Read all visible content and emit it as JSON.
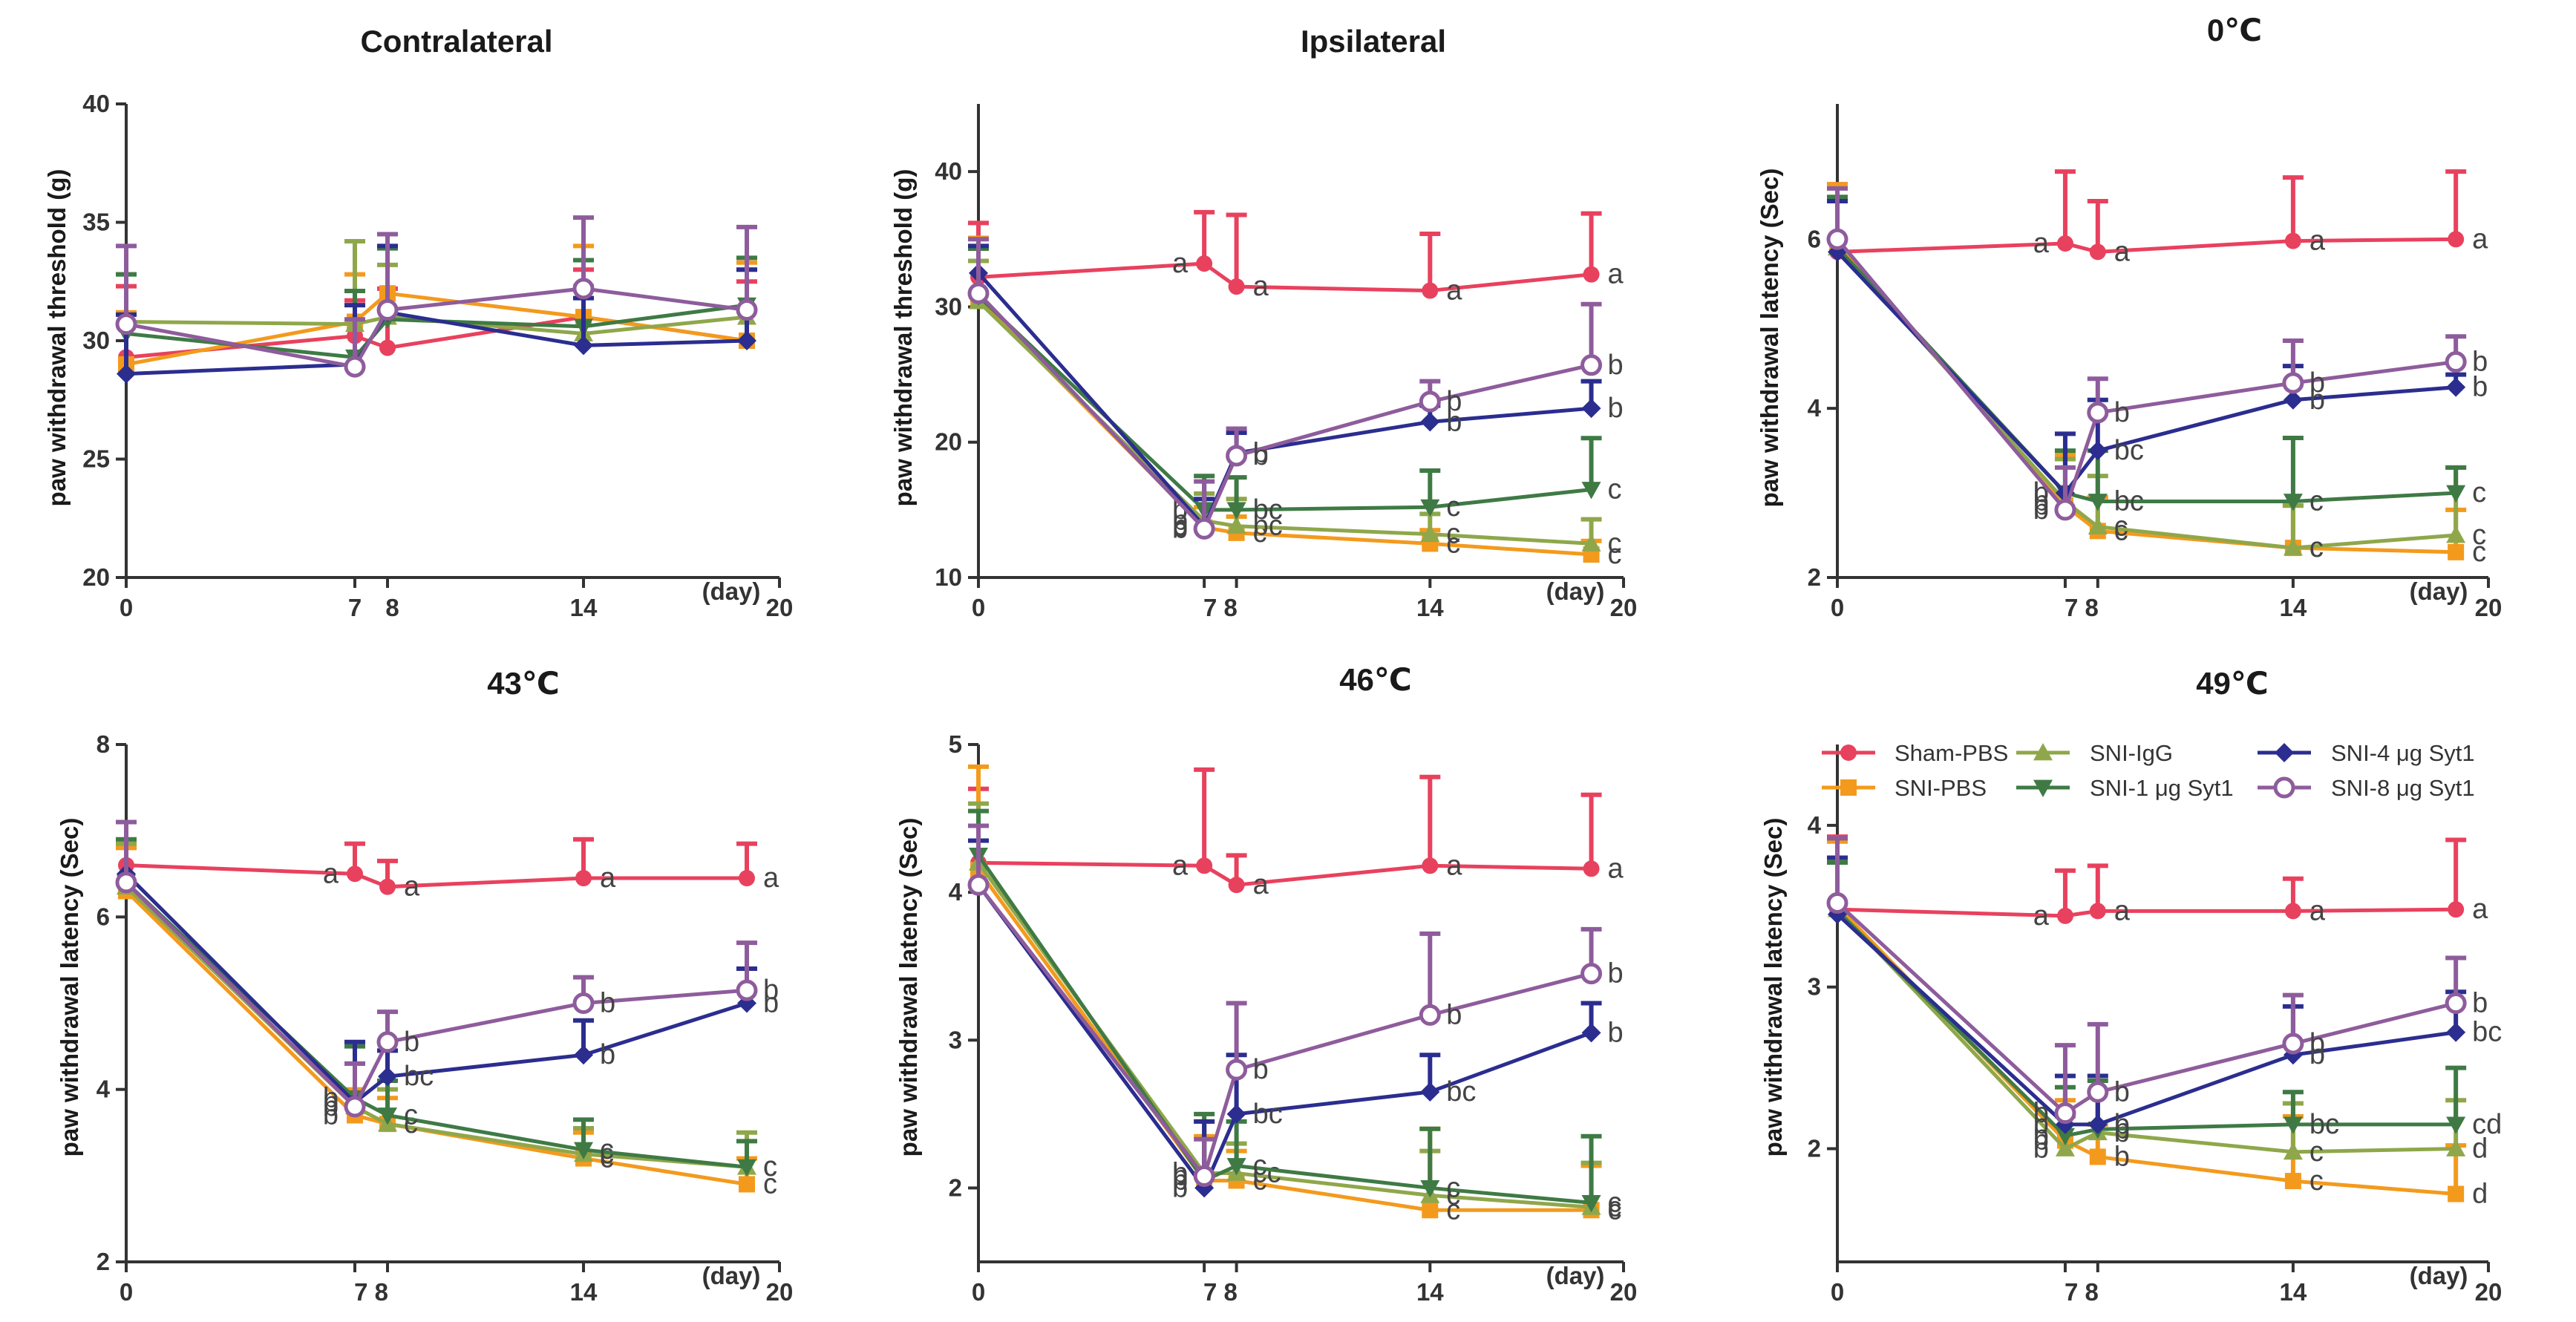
{
  "chart_data": [
    {
      "type": "line",
      "title": "Contralateral",
      "ylabel": "paw withdrawal threshold (g)",
      "xlabel": "(day)",
      "x": [
        0,
        7,
        8,
        14,
        19
      ],
      "ylim": [
        20,
        40
      ],
      "yticks": [
        "20",
        "25",
        "30",
        "35",
        "40"
      ],
      "xticks": [
        "0",
        "7",
        "8",
        "14",
        "20"
      ],
      "series": [
        {
          "name": "Sham-PBS",
          "values": [
            29.3,
            30.2,
            29.7,
            31.0,
            30.0
          ],
          "errors": [
            3.0,
            1.5,
            2.5,
            2.0,
            2.5
          ],
          "letters": []
        },
        {
          "name": "SNI-PBS",
          "values": [
            29.0,
            30.8,
            32.0,
            31.0,
            30.0
          ],
          "errors": [
            2.2,
            2.0,
            2.5,
            3.0,
            3.3
          ],
          "letters": []
        },
        {
          "name": "SNI-IgG",
          "values": [
            30.8,
            30.7,
            31.0,
            30.3,
            31.0
          ],
          "errors": [
            2.0,
            3.5,
            2.2,
            2.0,
            2.0
          ],
          "letters": []
        },
        {
          "name": "SNI-1 μg Syt1",
          "values": [
            30.3,
            29.3,
            30.9,
            30.6,
            31.5
          ],
          "errors": [
            2.5,
            2.8,
            3.0,
            2.8,
            2.0
          ],
          "letters": []
        },
        {
          "name": "SNI-4 μg Syt1",
          "values": [
            28.6,
            29.0,
            31.2,
            29.8,
            30.0
          ],
          "errors": [
            2.5,
            2.5,
            2.8,
            2.0,
            3.0
          ],
          "letters": []
        },
        {
          "name": "SNI-8 μg Syt1",
          "values": [
            30.7,
            28.9,
            31.3,
            32.2,
            31.3
          ],
          "errors": [
            3.3,
            2.0,
            3.2,
            3.0,
            3.5
          ],
          "letters": []
        }
      ]
    },
    {
      "type": "line",
      "title": "Ipsilateral",
      "ylabel": "paw withdrawal threshold (g)",
      "xlabel": "(day)",
      "x": [
        0,
        7,
        8,
        14,
        19
      ],
      "ylim": [
        10,
        45
      ],
      "yticks": [
        "10",
        "20",
        "30",
        "40"
      ],
      "xticks": [
        "0",
        "7 8",
        "14",
        "20"
      ],
      "series": [
        {
          "name": "Sham-PBS",
          "values": [
            32.2,
            33.2,
            31.5,
            31.2,
            32.4
          ],
          "errors": [
            4.0,
            3.8,
            5.3,
            4.2,
            4.5
          ],
          "letters": [
            "",
            "a",
            "a",
            "a",
            "a"
          ]
        },
        {
          "name": "SNI-PBS",
          "values": [
            30.6,
            13.7,
            13.3,
            12.5,
            11.7
          ],
          "errors": [
            4.5,
            1.5,
            1.2,
            1.0,
            1.0
          ],
          "letters": [
            "",
            "b",
            "c",
            "c",
            "c"
          ]
        },
        {
          "name": "SNI-IgG",
          "values": [
            30.4,
            14.2,
            13.8,
            13.2,
            12.5
          ],
          "errors": [
            3.0,
            2.0,
            2.0,
            1.5,
            1.8
          ],
          "letters": [
            "",
            "b",
            "bc",
            "c",
            "c"
          ]
        },
        {
          "name": "SNI-1 μg Syt1",
          "values": [
            30.8,
            15.0,
            15.0,
            15.2,
            16.5
          ],
          "errors": [
            3.5,
            2.5,
            2.4,
            2.7,
            3.8
          ],
          "letters": [
            "",
            "b",
            "bc",
            "c",
            "c"
          ]
        },
        {
          "name": "SNI-4 μg Syt1",
          "values": [
            32.5,
            13.8,
            19.2,
            21.5,
            22.5
          ],
          "errors": [
            2.0,
            2.0,
            1.5,
            1.2,
            2.0
          ],
          "letters": [
            "",
            "b",
            "b",
            "b",
            "b"
          ]
        },
        {
          "name": "SNI-8 μg Syt1",
          "values": [
            31.0,
            13.6,
            19.0,
            23.0,
            25.7
          ],
          "errors": [
            4.0,
            3.5,
            2.0,
            1.5,
            4.5
          ],
          "letters": [
            "",
            "b",
            "b",
            "b",
            "b"
          ]
        }
      ]
    },
    {
      "type": "line",
      "title": "0℃",
      "ylabel": "paw withdrawal latency (Sec)",
      "xlabel": "(day)",
      "x": [
        0,
        7,
        8,
        14,
        19
      ],
      "ylim": [
        2,
        7.6
      ],
      "yticks": [
        "2",
        "4",
        "6"
      ],
      "xticks": [
        "0",
        "7 8",
        "14",
        "20"
      ],
      "series": [
        {
          "name": "Sham-PBS",
          "values": [
            5.85,
            5.95,
            5.85,
            5.98,
            6.0
          ],
          "errors": [
            0.8,
            0.85,
            0.6,
            0.75,
            0.8
          ],
          "letters": [
            "",
            "a",
            "a",
            "a",
            "a"
          ]
        },
        {
          "name": "SNI-PBS",
          "values": [
            5.95,
            2.85,
            2.55,
            2.35,
            2.3
          ],
          "errors": [
            0.7,
            0.6,
            0.4,
            0.5,
            0.5
          ],
          "letters": [
            "",
            "b",
            "c",
            "c",
            "c"
          ]
        },
        {
          "name": "SNI-IgG",
          "values": [
            5.9,
            2.9,
            2.6,
            2.35,
            2.5
          ],
          "errors": [
            0.6,
            0.5,
            0.6,
            0.5,
            0.8
          ],
          "letters": [
            "",
            "b",
            "c",
            "c",
            "c"
          ]
        },
        {
          "name": "SNI-1 μg Syt1",
          "values": [
            5.9,
            3.0,
            2.9,
            2.9,
            3.0
          ],
          "errors": [
            0.6,
            0.5,
            0.6,
            0.75,
            0.3
          ],
          "letters": [
            "",
            "b",
            "bc",
            "c",
            "c"
          ]
        },
        {
          "name": "SNI-4 μg Syt1",
          "values": [
            5.85,
            3.0,
            3.5,
            4.1,
            4.25
          ],
          "errors": [
            0.6,
            0.7,
            0.6,
            0.4,
            0.15
          ],
          "letters": [
            "",
            "b",
            "bc",
            "b",
            "b"
          ]
        },
        {
          "name": "SNI-8 μg Syt1",
          "values": [
            6.0,
            2.8,
            3.95,
            4.3,
            4.55
          ],
          "errors": [
            0.6,
            0.5,
            0.4,
            0.5,
            0.3
          ],
          "letters": [
            "",
            "b",
            "b",
            "b",
            "b"
          ]
        }
      ]
    },
    {
      "type": "line",
      "title": "43℃",
      "ylabel": "paw withdrawal latency (Sec)",
      "xlabel": "(day)",
      "x": [
        0,
        7,
        8,
        14,
        19
      ],
      "ylim": [
        2,
        8
      ],
      "yticks": [
        "2",
        "4",
        "6",
        "8"
      ],
      "xticks": [
        "0",
        "7 8",
        "14",
        "20"
      ],
      "series": [
        {
          "name": "Sham-PBS",
          "values": [
            6.6,
            6.5,
            6.35,
            6.45,
            6.45
          ],
          "errors": [
            0.5,
            0.35,
            0.3,
            0.45,
            0.4
          ],
          "letters": [
            "",
            "a",
            "a",
            "a",
            "a"
          ]
        },
        {
          "name": "SNI-PBS",
          "values": [
            6.3,
            3.7,
            3.6,
            3.2,
            2.9
          ],
          "errors": [
            0.5,
            0.3,
            0.3,
            0.3,
            0.3
          ],
          "letters": [
            "",
            "b",
            "c",
            "c",
            "c"
          ]
        },
        {
          "name": "SNI-IgG",
          "values": [
            6.35,
            3.8,
            3.6,
            3.25,
            3.1
          ],
          "errors": [
            0.5,
            0.5,
            0.4,
            0.3,
            0.4
          ],
          "letters": [
            "",
            "b",
            "c",
            "c",
            "c"
          ]
        },
        {
          "name": "SNI-1 μg Syt1",
          "values": [
            6.4,
            3.9,
            3.7,
            3.3,
            3.1
          ],
          "errors": [
            0.5,
            0.6,
            0.4,
            0.35,
            0.3
          ],
          "letters": [
            "",
            "b",
            "c",
            "c",
            "c"
          ]
        },
        {
          "name": "SNI-4 μg Syt1",
          "values": [
            6.5,
            3.85,
            4.15,
            4.4,
            5.0
          ],
          "errors": [
            0.6,
            0.7,
            0.3,
            0.4,
            0.4
          ],
          "letters": [
            "",
            "b",
            "bc",
            "b",
            "b"
          ]
        },
        {
          "name": "SNI-8 μg Syt1",
          "values": [
            6.4,
            3.8,
            4.55,
            5.0,
            5.15
          ],
          "errors": [
            0.7,
            0.5,
            0.35,
            0.3,
            0.55
          ],
          "letters": [
            "",
            "b",
            "b",
            "b",
            "b"
          ]
        }
      ]
    },
    {
      "type": "line",
      "title": "46℃",
      "ylabel": "paw withdrawal latency (Sec)",
      "xlabel": "(day)",
      "x": [
        0,
        7,
        8,
        14,
        19
      ],
      "ylim": [
        1.5,
        5
      ],
      "yticks": [
        "2",
        "3",
        "4",
        "5"
      ],
      "xticks": [
        "0",
        "7 8",
        "14",
        "20"
      ],
      "series": [
        {
          "name": "Sham-PBS",
          "values": [
            4.2,
            4.18,
            4.05,
            4.18,
            4.16
          ],
          "errors": [
            0.5,
            0.65,
            0.2,
            0.6,
            0.5
          ],
          "letters": [
            "",
            "a",
            "a",
            "a",
            "a"
          ]
        },
        {
          "name": "SNI-PBS",
          "values": [
            4.15,
            2.05,
            2.05,
            1.85,
            1.85
          ],
          "errors": [
            0.7,
            0.3,
            0.2,
            0.55,
            0.3
          ],
          "letters": [
            "",
            "b",
            "c",
            "c",
            "c"
          ]
        },
        {
          "name": "SNI-IgG",
          "values": [
            4.2,
            2.1,
            2.1,
            1.95,
            1.87
          ],
          "errors": [
            0.4,
            0.35,
            0.2,
            0.3,
            0.3
          ],
          "letters": [
            "",
            "b",
            "cc",
            "c",
            "c"
          ]
        },
        {
          "name": "SNI-1 μg Syt1",
          "values": [
            4.25,
            2.05,
            2.15,
            2.0,
            1.9
          ],
          "errors": [
            0.3,
            0.45,
            0.3,
            0.4,
            0.45
          ],
          "letters": [
            "",
            "b",
            "c",
            "c",
            "c"
          ]
        },
        {
          "name": "SNI-4 μg Syt1",
          "values": [
            4.05,
            2.0,
            2.5,
            2.65,
            3.05
          ],
          "errors": [
            0.3,
            0.45,
            0.4,
            0.25,
            0.2
          ],
          "letters": [
            "",
            "b",
            "bc",
            "bc",
            "b"
          ]
        },
        {
          "name": "SNI-8 μg Syt1",
          "values": [
            4.05,
            2.08,
            2.8,
            3.17,
            3.45
          ],
          "errors": [
            0.4,
            0.25,
            0.45,
            0.55,
            0.3
          ],
          "letters": [
            "",
            "b",
            "b",
            "b",
            "b"
          ]
        }
      ]
    },
    {
      "type": "line",
      "title": "49℃",
      "ylabel": "paw withdrawal latency (Sec)",
      "xlabel": "(day)",
      "x": [
        0,
        7,
        8,
        14,
        19
      ],
      "ylim": [
        1.3,
        4.5
      ],
      "yticks": [
        "2",
        "3",
        "4"
      ],
      "xticks": [
        "0",
        "7 8",
        "14",
        "20"
      ],
      "series": [
        {
          "name": "Sham-PBS",
          "values": [
            3.48,
            3.44,
            3.47,
            3.47,
            3.48
          ],
          "errors": [
            0.45,
            0.28,
            0.28,
            0.2,
            0.43
          ],
          "letters": [
            "",
            "a",
            "a",
            "a",
            "a"
          ]
        },
        {
          "name": "SNI-PBS",
          "values": [
            3.5,
            2.05,
            1.95,
            1.8,
            1.72
          ],
          "errors": [
            0.4,
            0.25,
            0.2,
            0.4,
            0.3
          ],
          "letters": [
            "",
            "b",
            "b",
            "c",
            "d"
          ]
        },
        {
          "name": "SNI-IgG",
          "values": [
            3.48,
            2.0,
            2.1,
            1.98,
            2.0
          ],
          "errors": [
            0.3,
            0.2,
            0.25,
            0.3,
            0.3
          ],
          "letters": [
            "",
            "b",
            "b",
            "c",
            "d"
          ]
        },
        {
          "name": "SNI-1 μg Syt1",
          "values": [
            3.47,
            2.08,
            2.12,
            2.15,
            2.15
          ],
          "errors": [
            0.3,
            0.3,
            0.3,
            0.2,
            0.35
          ],
          "letters": [
            "",
            "b",
            "b",
            "bc",
            "cd"
          ]
        },
        {
          "name": "SNI-4 μg Syt1",
          "values": [
            3.45,
            2.15,
            2.15,
            2.58,
            2.72
          ],
          "errors": [
            0.35,
            0.3,
            0.3,
            0.3,
            0.25
          ],
          "letters": [
            "",
            "b",
            "b",
            "b",
            "bc"
          ]
        },
        {
          "name": "SNI-8 μg Syt1",
          "values": [
            3.52,
            2.22,
            2.35,
            2.65,
            2.9
          ],
          "errors": [
            0.4,
            0.42,
            0.42,
            0.3,
            0.28
          ],
          "letters": [
            "",
            "b",
            "b",
            "b",
            "b"
          ]
        }
      ]
    }
  ],
  "legend": {
    "placement": "top-right of 49℃ panel",
    "entries": [
      {
        "name": "Sham-PBS",
        "marker": "circle"
      },
      {
        "name": "SNI-PBS",
        "marker": "square"
      },
      {
        "name": "SNI-IgG",
        "marker": "triangle-up"
      },
      {
        "name": "SNI-1 μg Syt1",
        "marker": "triangle-down"
      },
      {
        "name": "SNI-4 μg Syt1",
        "marker": "diamond"
      },
      {
        "name": "SNI-8 μg Syt1",
        "marker": "open-circle"
      }
    ]
  },
  "colors": {
    "Sham-PBS": "#e8415e",
    "SNI-PBS": "#f39a1d",
    "SNI-IgG": "#8fa74a",
    "SNI-1 μg Syt1": "#3f7a45",
    "SNI-4 μg Syt1": "#2b2d8f",
    "SNI-8 μg Syt1": "#8e5c9c",
    "axis": "#333333",
    "letters": "#444444"
  }
}
